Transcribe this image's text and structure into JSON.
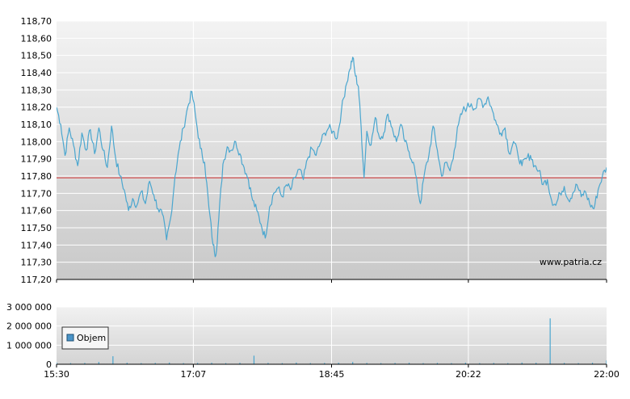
{
  "watermark": "www.patria.cz",
  "colors": {
    "price_line": "#4aa6cf",
    "reference_line": "#cc2a2a",
    "volume_bar": "#4aa6cf",
    "legend_swatch": "#4a94c8",
    "grid": "#ffffff",
    "bg_top": "#f3f3f3",
    "bg_bottom": "#c9c9c9"
  },
  "chart_data": [
    {
      "type": "line",
      "title": "",
      "xlabel": "",
      "ylabel": "",
      "x_ticks": [
        "15:30",
        "17:07",
        "18:45",
        "20:22",
        "22:00"
      ],
      "xlim": [
        "15:30",
        "22:00"
      ],
      "y_ticks": [
        "118,70",
        "118,60",
        "118,50",
        "118,40",
        "118,30",
        "118,20",
        "118,10",
        "118,00",
        "117,90",
        "117,80",
        "117,70",
        "117,60",
        "117,50",
        "117,40",
        "117,30",
        "117,20"
      ],
      "ylim": [
        117.2,
        118.7
      ],
      "reference_value": 117.79,
      "grid": true,
      "series": [
        {
          "points": [
            [
              "15:30",
              118.2
            ],
            [
              "15:33",
              118.1
            ],
            [
              "15:36",
              117.92
            ],
            [
              "15:39",
              118.08
            ],
            [
              "15:42",
              117.98
            ],
            [
              "15:45",
              117.86
            ],
            [
              "15:48",
              118.05
            ],
            [
              "15:51",
              117.95
            ],
            [
              "15:54",
              118.07
            ],
            [
              "15:57",
              117.93
            ],
            [
              "16:00",
              118.08
            ],
            [
              "16:03",
              117.95
            ],
            [
              "16:06",
              117.85
            ],
            [
              "16:09",
              118.09
            ],
            [
              "16:12",
              117.9
            ],
            [
              "16:15",
              117.8
            ],
            [
              "16:18",
              117.72
            ],
            [
              "16:21",
              117.6
            ],
            [
              "16:24",
              117.67
            ],
            [
              "16:27",
              117.63
            ],
            [
              "16:30",
              117.71
            ],
            [
              "16:33",
              117.64
            ],
            [
              "16:36",
              117.77
            ],
            [
              "16:39",
              117.69
            ],
            [
              "16:42",
              117.61
            ],
            [
              "16:45",
              117.58
            ],
            [
              "16:48",
              117.43
            ],
            [
              "16:51",
              117.56
            ],
            [
              "16:54",
              117.8
            ],
            [
              "16:57",
              117.96
            ],
            [
              "17:00",
              118.08
            ],
            [
              "17:03",
              118.2
            ],
            [
              "17:06",
              118.29
            ],
            [
              "17:09",
              118.12
            ],
            [
              "17:12",
              117.96
            ],
            [
              "17:15",
              117.88
            ],
            [
              "17:18",
              117.62
            ],
            [
              "17:21",
              117.4
            ],
            [
              "17:23",
              117.34
            ],
            [
              "17:25",
              117.55
            ],
            [
              "17:28",
              117.87
            ],
            [
              "17:31",
              117.97
            ],
            [
              "17:34",
              117.95
            ],
            [
              "17:37",
              118.0
            ],
            [
              "17:40",
              117.93
            ],
            [
              "17:43",
              117.85
            ],
            [
              "17:46",
              117.78
            ],
            [
              "17:49",
              117.66
            ],
            [
              "17:52",
              117.6
            ],
            [
              "17:55",
              117.52
            ],
            [
              "17:58",
              117.44
            ],
            [
              "18:01",
              117.62
            ],
            [
              "18:04",
              117.7
            ],
            [
              "18:07",
              117.73
            ],
            [
              "18:10",
              117.68
            ],
            [
              "18:13",
              117.75
            ],
            [
              "18:16",
              117.72
            ],
            [
              "18:19",
              117.79
            ],
            [
              "18:22",
              117.84
            ],
            [
              "18:25",
              117.78
            ],
            [
              "18:28",
              117.9
            ],
            [
              "18:31",
              117.96
            ],
            [
              "18:34",
              117.92
            ],
            [
              "18:37",
              117.99
            ],
            [
              "18:40",
              118.05
            ],
            [
              "18:43",
              118.08
            ],
            [
              "18:46",
              118.06
            ],
            [
              "18:49",
              118.02
            ],
            [
              "18:52",
              118.18
            ],
            [
              "18:55",
              118.32
            ],
            [
              "18:58",
              118.42
            ],
            [
              "19:00",
              118.49
            ],
            [
              "19:02",
              118.38
            ],
            [
              "19:04",
              118.32
            ],
            [
              "19:06",
              118.08
            ],
            [
              "19:08",
              117.79
            ],
            [
              "19:10",
              118.06
            ],
            [
              "19:13",
              117.98
            ],
            [
              "19:16",
              118.14
            ],
            [
              "19:19",
              118.02
            ],
            [
              "19:22",
              118.05
            ],
            [
              "19:25",
              118.16
            ],
            [
              "19:28",
              118.08
            ],
            [
              "19:31",
              118.0
            ],
            [
              "19:34",
              118.1
            ],
            [
              "19:37",
              118.0
            ],
            [
              "19:40",
              117.94
            ],
            [
              "19:43",
              117.88
            ],
            [
              "19:46",
              117.73
            ],
            [
              "19:48",
              117.64
            ],
            [
              "19:51",
              117.82
            ],
            [
              "19:54",
              117.92
            ],
            [
              "19:57",
              118.09
            ],
            [
              "20:00",
              117.95
            ],
            [
              "20:03",
              117.8
            ],
            [
              "20:06",
              117.88
            ],
            [
              "20:09",
              117.83
            ],
            [
              "20:12",
              117.95
            ],
            [
              "20:15",
              118.1
            ],
            [
              "20:18",
              118.18
            ],
            [
              "20:21",
              118.2
            ],
            [
              "20:24",
              118.22
            ],
            [
              "20:27",
              118.19
            ],
            [
              "20:30",
              118.25
            ],
            [
              "20:33",
              118.21
            ],
            [
              "20:36",
              118.26
            ],
            [
              "20:39",
              118.18
            ],
            [
              "20:42",
              118.1
            ],
            [
              "20:45",
              118.05
            ],
            [
              "20:48",
              118.08
            ],
            [
              "20:51",
              117.93
            ],
            [
              "20:54",
              118.0
            ],
            [
              "20:57",
              117.93
            ],
            [
              "21:00",
              117.86
            ],
            [
              "21:03",
              117.9
            ],
            [
              "21:06",
              117.92
            ],
            [
              "21:09",
              117.86
            ],
            [
              "21:12",
              117.83
            ],
            [
              "21:15",
              117.75
            ],
            [
              "21:18",
              117.78
            ],
            [
              "21:21",
              117.66
            ],
            [
              "21:24",
              117.63
            ],
            [
              "21:27",
              117.7
            ],
            [
              "21:30",
              117.74
            ],
            [
              "21:33",
              117.66
            ],
            [
              "21:36",
              117.7
            ],
            [
              "21:39",
              117.75
            ],
            [
              "21:42",
              117.68
            ],
            [
              "21:45",
              117.71
            ],
            [
              "21:48",
              117.64
            ],
            [
              "21:51",
              117.61
            ],
            [
              "21:54",
              117.72
            ],
            [
              "21:57",
              117.8
            ],
            [
              "22:00",
              117.85
            ]
          ]
        }
      ]
    },
    {
      "type": "bar",
      "title": "",
      "xlabel": "",
      "ylabel": "",
      "y_ticks": [
        "3 000 000",
        "2 000 000",
        "1 000 000",
        "0"
      ],
      "ylim": [
        0,
        3000000
      ],
      "legend": "Objem",
      "legend_position": "top-left",
      "grid": true,
      "series": [
        {
          "name": "Objem",
          "points": [
            [
              "15:30",
              90000
            ],
            [
              "15:40",
              60000
            ],
            [
              "15:50",
              70000
            ],
            [
              "16:00",
              120000
            ],
            [
              "16:10",
              420000
            ],
            [
              "16:20",
              80000
            ],
            [
              "16:30",
              60000
            ],
            [
              "16:40",
              70000
            ],
            [
              "16:50",
              90000
            ],
            [
              "17:00",
              60000
            ],
            [
              "17:10",
              70000
            ],
            [
              "17:20",
              80000
            ],
            [
              "17:30",
              60000
            ],
            [
              "17:40",
              80000
            ],
            [
              "17:50",
              450000
            ],
            [
              "18:00",
              70000
            ],
            [
              "18:10",
              60000
            ],
            [
              "18:20",
              90000
            ],
            [
              "18:30",
              60000
            ],
            [
              "18:40",
              70000
            ],
            [
              "18:50",
              80000
            ],
            [
              "19:00",
              120000
            ],
            [
              "19:10",
              70000
            ],
            [
              "19:20",
              60000
            ],
            [
              "19:30",
              70000
            ],
            [
              "19:40",
              80000
            ],
            [
              "19:50",
              60000
            ],
            [
              "20:00",
              70000
            ],
            [
              "20:10",
              60000
            ],
            [
              "20:20",
              80000
            ],
            [
              "20:30",
              60000
            ],
            [
              "20:40",
              70000
            ],
            [
              "20:50",
              60000
            ],
            [
              "21:00",
              90000
            ],
            [
              "21:10",
              80000
            ],
            [
              "21:20",
              2400000
            ],
            [
              "21:30",
              70000
            ],
            [
              "21:40",
              60000
            ],
            [
              "21:50",
              80000
            ],
            [
              "22:00",
              200000
            ]
          ]
        }
      ]
    }
  ]
}
